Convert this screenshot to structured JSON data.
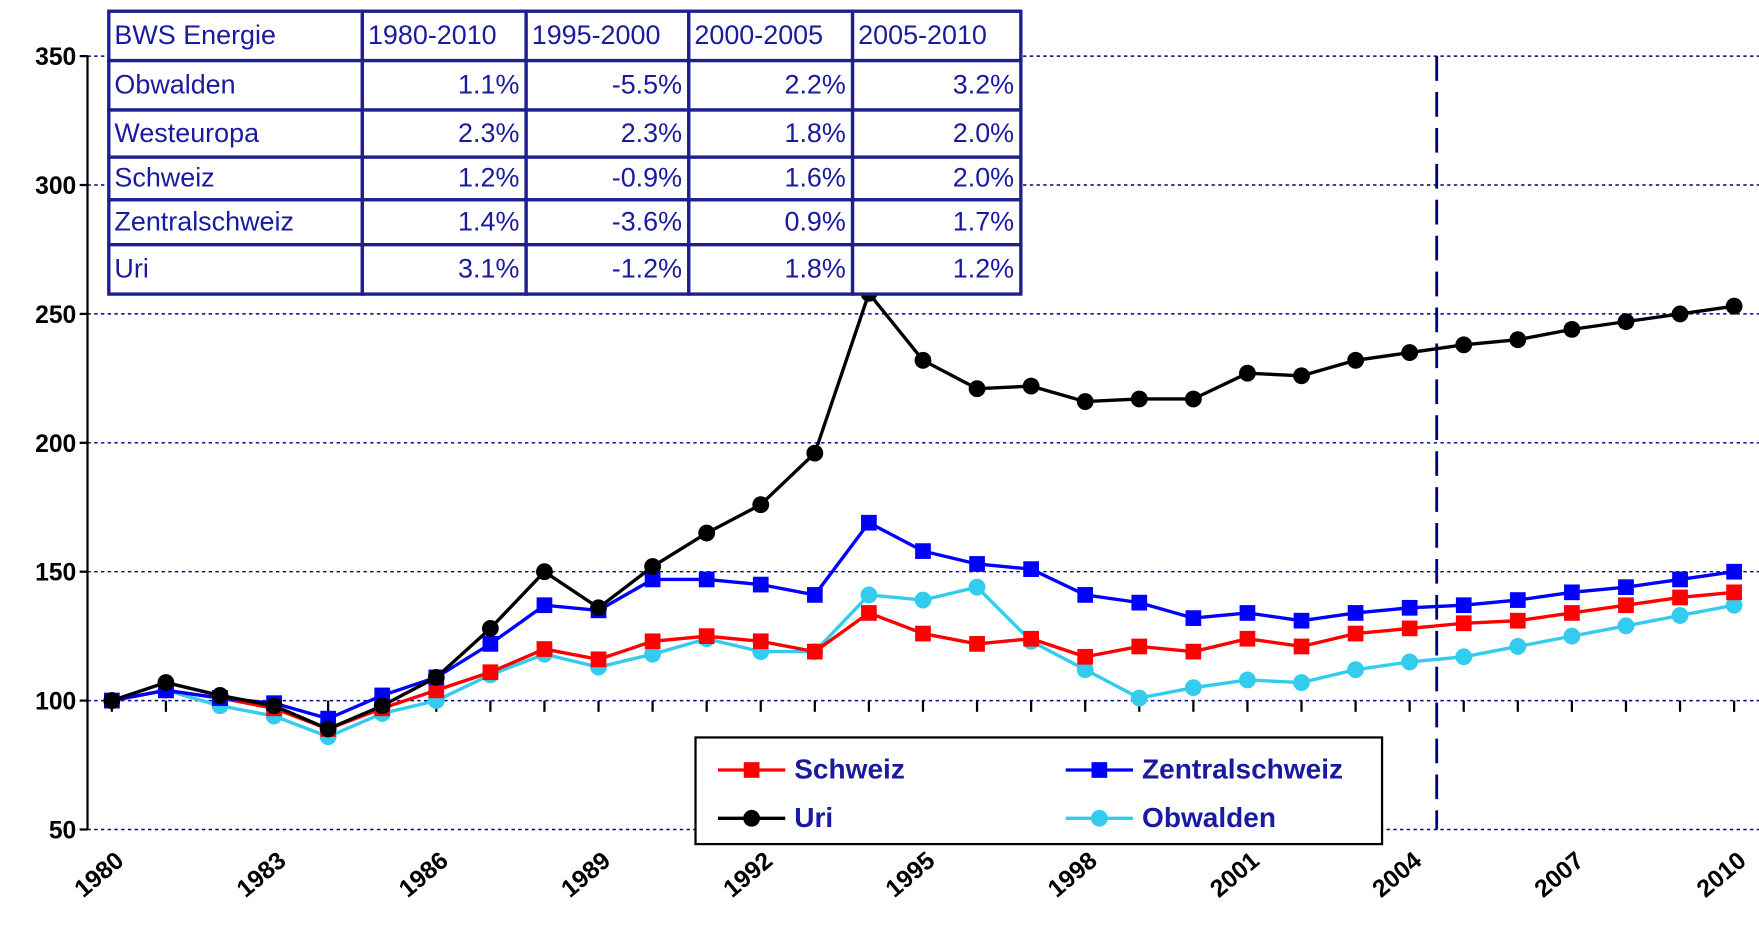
{
  "chart_data": {
    "type": "line",
    "x": [
      1980,
      1981,
      1982,
      1983,
      1984,
      1985,
      1986,
      1987,
      1988,
      1989,
      1990,
      1991,
      1992,
      1993,
      1994,
      1995,
      1996,
      1997,
      1998,
      1999,
      2000,
      2001,
      2002,
      2003,
      2004,
      2005,
      2006,
      2007,
      2008,
      2009,
      2010
    ],
    "series": [
      {
        "name": "Schweiz",
        "color": "#ff0000",
        "marker": "square",
        "values": [
          100,
          104,
          101,
          97,
          89,
          97,
          104,
          111,
          120,
          116,
          123,
          125,
          123,
          119,
          134,
          126,
          122,
          124,
          117,
          121,
          119,
          124,
          121,
          126,
          128,
          130,
          131,
          134,
          137,
          140,
          142
        ]
      },
      {
        "name": "Zentralschweiz",
        "color": "#0000ff",
        "marker": "square",
        "values": [
          100,
          104,
          101,
          99,
          93,
          102,
          109,
          122,
          137,
          135,
          147,
          147,
          145,
          141,
          169,
          158,
          153,
          151,
          141,
          138,
          132,
          134,
          131,
          134,
          136,
          137,
          139,
          142,
          144,
          147,
          150
        ]
      },
      {
        "name": "Uri",
        "color": "#000000",
        "marker": "circle",
        "values": [
          100,
          107,
          102,
          98,
          89,
          98,
          109,
          128,
          150,
          136,
          152,
          165,
          176,
          196,
          258,
          232,
          221,
          222,
          216,
          217,
          217,
          227,
          226,
          232,
          235,
          238,
          240,
          244,
          247,
          250,
          253
        ]
      },
      {
        "name": "Obwalden",
        "color": "#33ccee",
        "marker": "circle",
        "values": [
          100,
          104,
          98,
          94,
          86,
          95,
          100,
          110,
          118,
          113,
          118,
          124,
          119,
          119,
          141,
          139,
          144,
          123,
          112,
          101,
          105,
          108,
          107,
          112,
          115,
          117,
          121,
          125,
          129,
          133,
          137
        ]
      }
    ],
    "xlim": [
      1979.55,
      2010.46
    ],
    "xticks": [
      1980,
      1983,
      1986,
      1989,
      1992,
      1995,
      1998,
      2001,
      2004,
      2007,
      2010
    ],
    "ylim": [
      50,
      350
    ],
    "yticks": [
      50,
      100,
      150,
      200,
      250,
      300,
      350
    ],
    "grid": true,
    "vline_x": 2004.5,
    "table": {
      "header": [
        "BWS Energie",
        "1980-2010",
        "1995-2000",
        "2000-2005",
        "2005-2010"
      ],
      "rows": [
        [
          "Obwalden",
          "1.1%",
          "-5.5%",
          "2.2%",
          "3.2%"
        ],
        [
          "Westeuropa",
          "2.3%",
          "2.3%",
          "1.8%",
          "2.0%"
        ],
        [
          "Schweiz",
          "1.2%",
          "-0.9%",
          "1.6%",
          "2.0%"
        ],
        [
          "Zentralschweiz",
          "1.4%",
          "-3.6%",
          "0.9%",
          "1.7%"
        ],
        [
          "Uri",
          "3.1%",
          "-1.2%",
          "1.8%",
          "1.2%"
        ]
      ]
    }
  }
}
